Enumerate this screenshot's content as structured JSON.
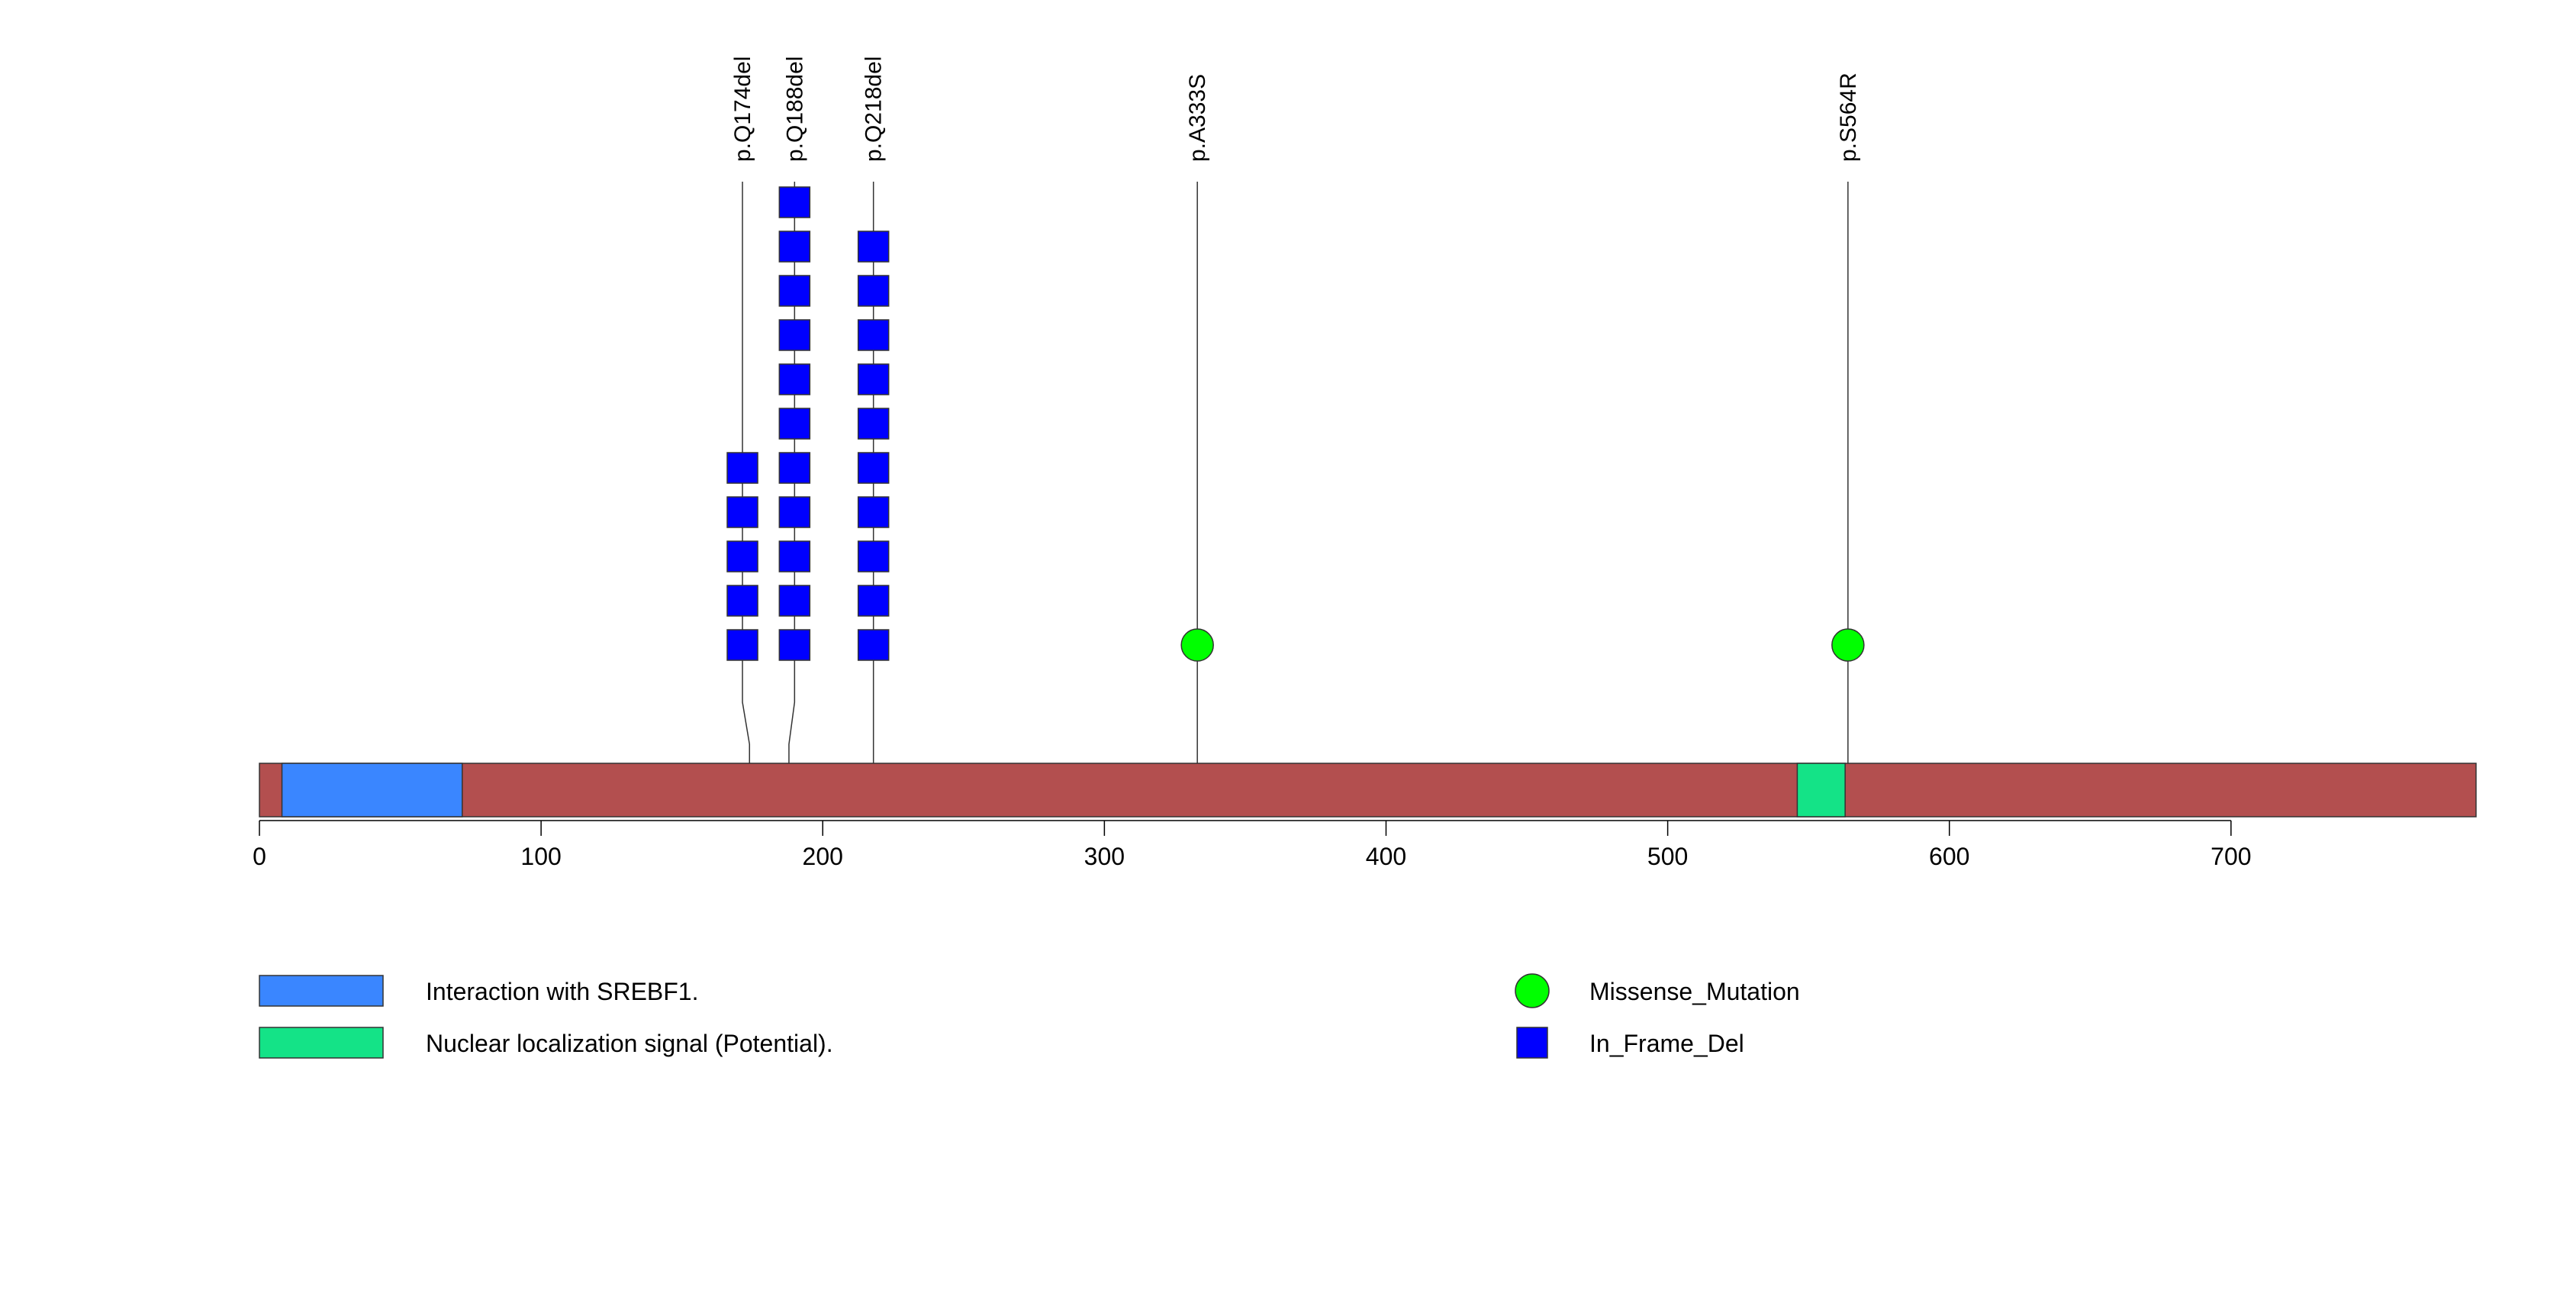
{
  "chart_data": {
    "type": "lollipop",
    "protein_length": 787,
    "axis": {
      "xlim": [
        0,
        787
      ],
      "ticks": [
        0,
        100,
        200,
        300,
        400,
        500,
        600,
        700
      ],
      "tick_labels": [
        "0",
        "100",
        "200",
        "300",
        "400",
        "500",
        "600",
        "700"
      ]
    },
    "backbone_color": "#B34F4F",
    "domains": [
      {
        "name": "Interaction with SREBF1.",
        "start": 8,
        "end": 72,
        "color": "#3A86FF"
      },
      {
        "name": "Nuclear localization signal (Potential).",
        "start": 546,
        "end": 563,
        "color": "#14E387"
      }
    ],
    "mutations": [
      {
        "label": "p.Q174del",
        "position": 174,
        "display_position": 171.5,
        "count": 5,
        "type": "In_Frame_Del"
      },
      {
        "label": "p.Q188del",
        "position": 188,
        "display_position": 190,
        "count": 11,
        "type": "In_Frame_Del"
      },
      {
        "label": "p.Q218del",
        "position": 218,
        "display_position": 218,
        "count": 10,
        "type": "In_Frame_Del"
      },
      {
        "label": "p.A333S",
        "position": 333,
        "display_position": 333,
        "count": 1,
        "type": "Missense_Mutation"
      },
      {
        "label": "p.S564R",
        "position": 564,
        "display_position": 564,
        "count": 1,
        "type": "Missense_Mutation"
      }
    ],
    "mutation_types": [
      {
        "name": "Missense_Mutation",
        "shape": "circle",
        "color": "#00FF00"
      },
      {
        "name": "In_Frame_Del",
        "shape": "square",
        "color": "#0000FF"
      }
    ],
    "domain_legend": [
      {
        "name": "Interaction with SREBF1.",
        "color": "#3A86FF"
      },
      {
        "name": "Nuclear localization signal (Potential).",
        "color": "#14E387"
      }
    ]
  }
}
